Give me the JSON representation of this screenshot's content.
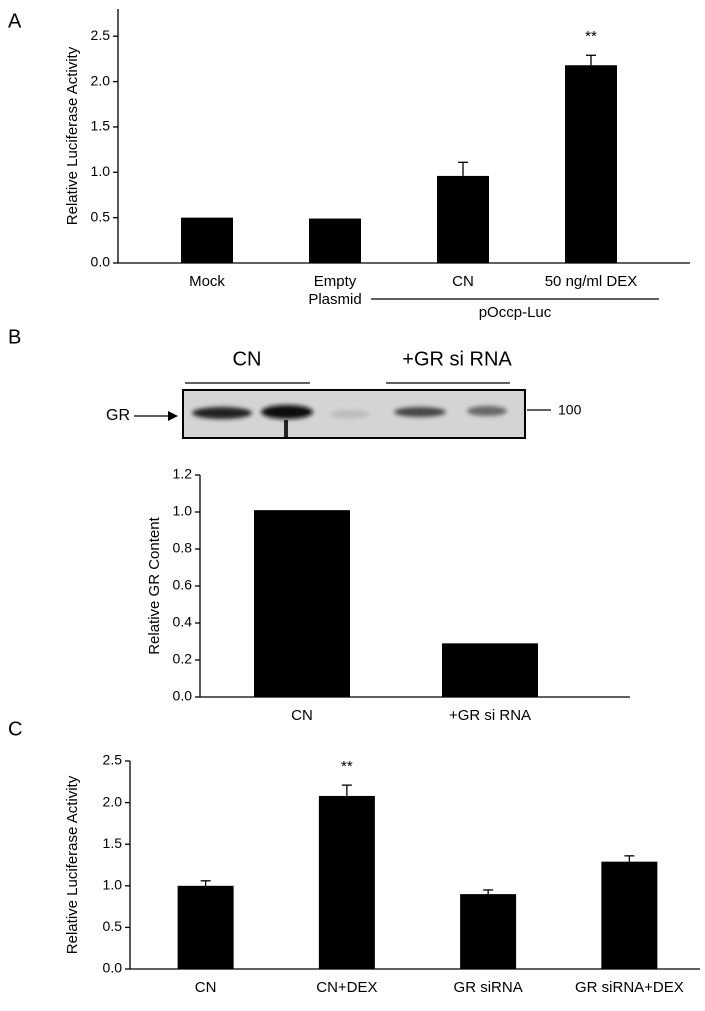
{
  "chart_data": [
    {
      "type": "bar",
      "panel": "A",
      "y_label": "Relative Luciferase Activity",
      "categories": [
        "Mock",
        "Empty Plasmid",
        "CN",
        "50 ng/ml DEX"
      ],
      "values": [
        0.5,
        0.49,
        0.96,
        2.18
      ],
      "errors": [
        null,
        null,
        0.15,
        0.11
      ],
      "significance": [
        null,
        null,
        null,
        "**"
      ],
      "group_label": "pOccp-Luc",
      "color": "#000000",
      "ylim": [
        0,
        2.8
      ],
      "yticks": [
        {
          "value": 0,
          "label": "0.0"
        },
        0.5,
        {
          "value": 1,
          "label": "1.0"
        },
        1.5,
        {
          "value": 2,
          "label": "2.0"
        },
        2.5
      ]
    },
    {
      "type": "bar",
      "y_label": "Relative GR Content",
      "categories": [
        "CN",
        "+GR si RNA"
      ],
      "values": [
        1.01,
        0.29
      ],
      "color": "#000000",
      "ylim": [
        0,
        1.2
      ],
      "yticks": [
        {
          "value": 0,
          "label": "0.0"
        },
        0.2,
        0.4,
        0.6,
        0.8,
        {
          "value": 1,
          "label": "1.0"
        },
        1.2
      ]
    },
    {
      "type": "bar",
      "panel": "C",
      "y_label": "Relative Luciferase Activity",
      "categories": [
        "CN",
        "CN+DEX",
        "GR siRNA",
        "GR siRNA+DEX"
      ],
      "values": [
        1.0,
        2.08,
        0.9,
        1.29
      ],
      "errors": [
        0.06,
        0.13,
        0.05,
        0.07
      ],
      "significance": [
        null,
        "**",
        null,
        null
      ],
      "color": "#000000",
      "ylim": [
        0,
        2.5
      ],
      "yticks": [
        {
          "value": 0,
          "label": "0.0"
        },
        0.5,
        {
          "value": 1,
          "label": "1.0"
        },
        1.5,
        {
          "value": 2,
          "label": "2.0"
        },
        2.5
      ]
    }
  ],
  "blot": {
    "panel": "B",
    "lanes": [
      "CN",
      "+GR si RNA"
    ],
    "band_label": "GR",
    "marker": "100"
  }
}
